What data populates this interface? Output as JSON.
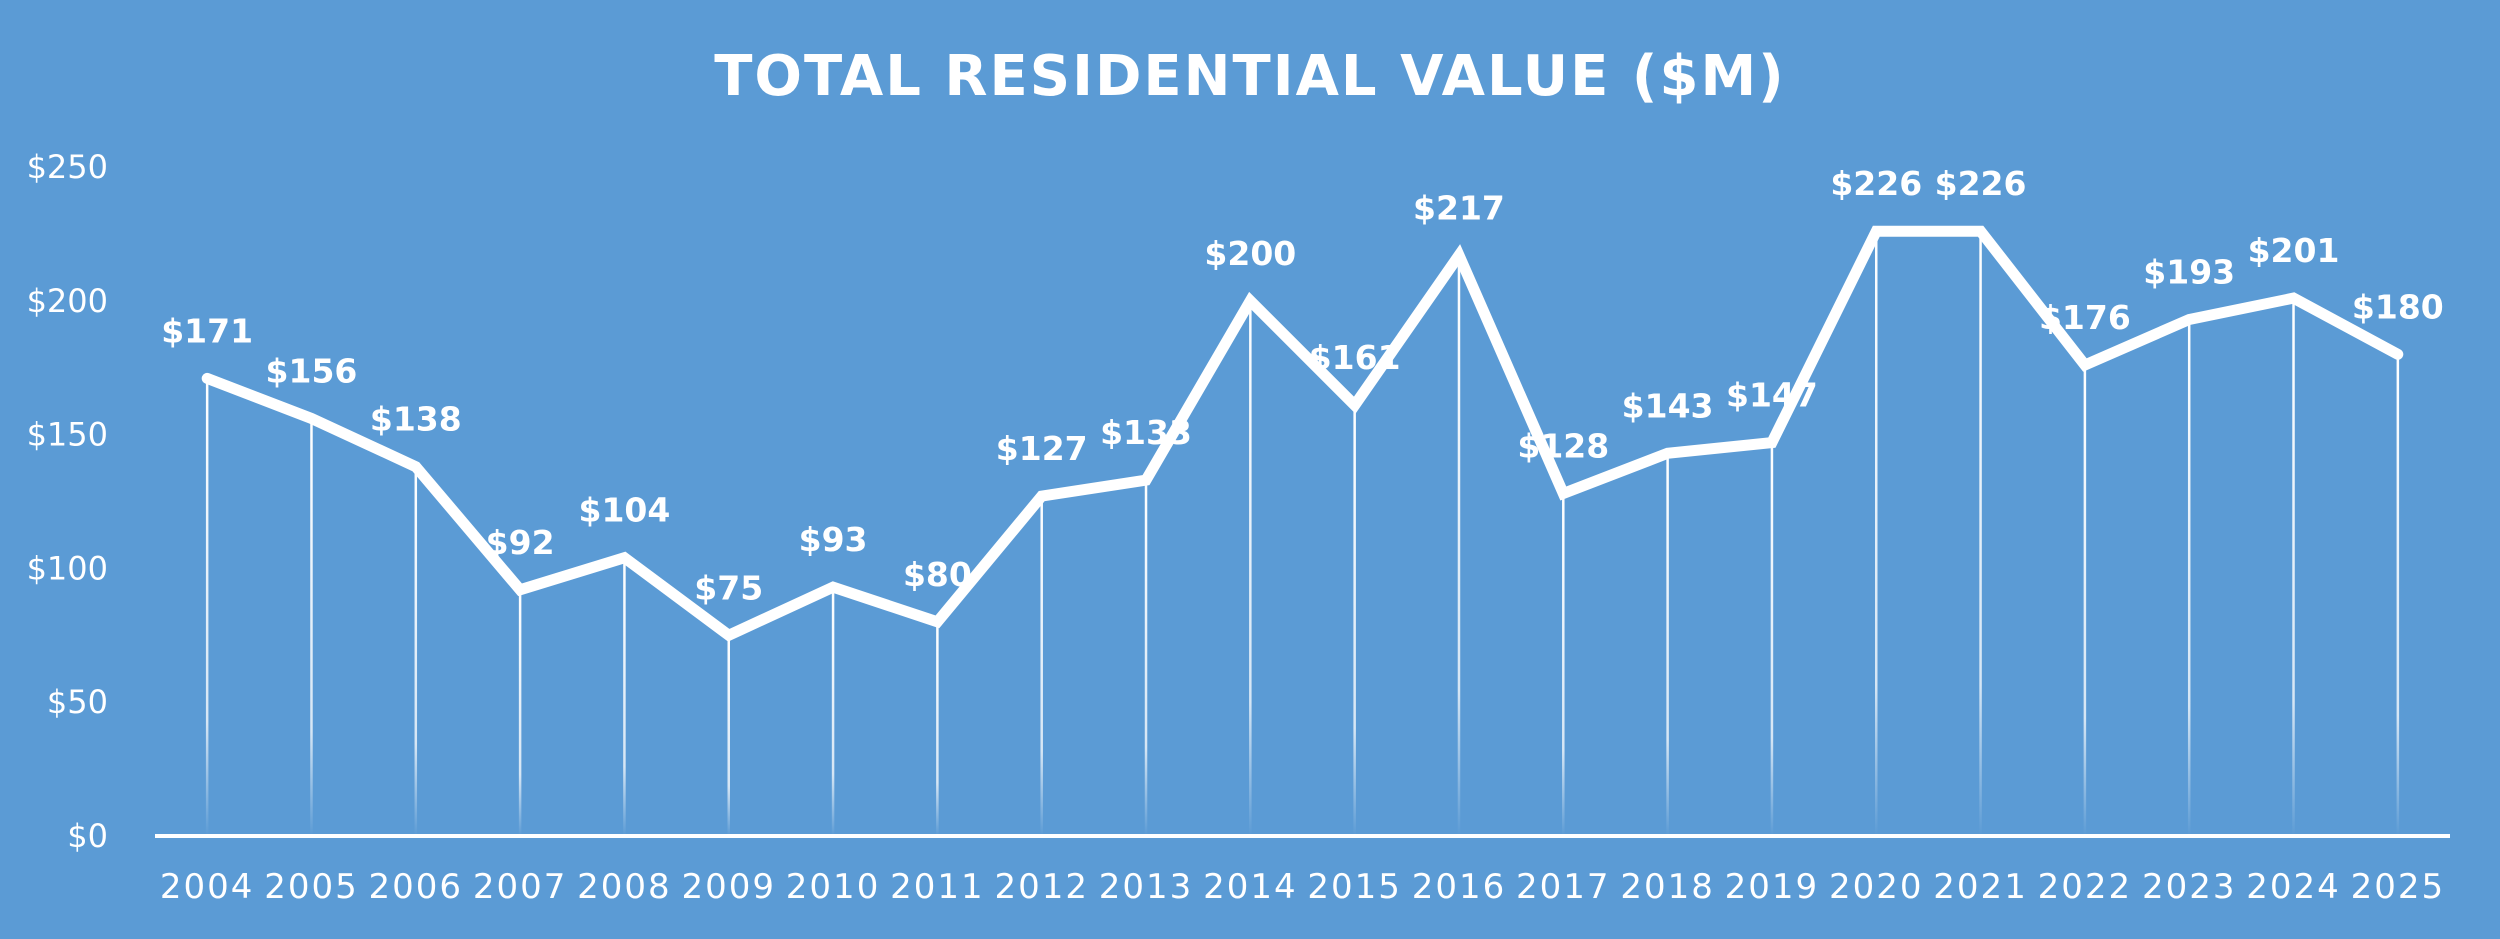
{
  "chart_data": {
    "type": "line",
    "title": "TOTAL RESIDENTIAL VALUE ($M)",
    "xlabel": "",
    "ylabel": "",
    "categories": [
      "2004",
      "2005",
      "2006",
      "2007",
      "2008",
      "2009",
      "2010",
      "2011",
      "2012",
      "2013",
      "2014",
      "2015",
      "2016",
      "2017",
      "2018",
      "2019",
      "2020",
      "2021",
      "2022",
      "2023",
      "2024",
      "2025"
    ],
    "values": [
      171,
      156,
      138,
      92,
      104,
      75,
      93,
      80,
      127,
      133,
      200,
      161,
      217,
      128,
      143,
      147,
      226,
      226,
      176,
      193,
      201,
      180
    ],
    "data_labels": [
      "$171",
      "$156",
      "$138",
      "$92",
      "$104",
      "$75",
      "$93",
      "$80",
      "$127",
      "$133",
      "$200",
      "$161",
      "$217",
      "$128",
      "$143",
      "$147",
      "$226",
      "$226",
      "$176",
      "$193",
      "$201",
      "$180"
    ],
    "yticks": [
      0,
      50,
      100,
      150,
      200,
      250
    ],
    "ytick_labels": [
      "$0",
      "$50",
      "$100",
      "$150",
      "$200",
      "$250"
    ],
    "ylim": [
      0,
      250
    ],
    "grid": false,
    "drop_lines": true,
    "legend": "none",
    "colors": {
      "background": "#5b9bd5",
      "line": "#ffffff",
      "text": "#ffffff"
    }
  }
}
